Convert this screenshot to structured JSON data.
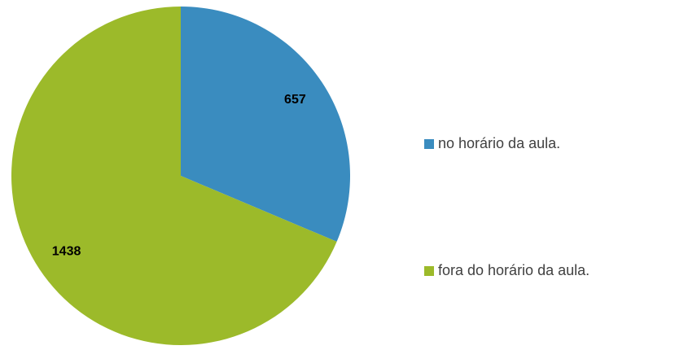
{
  "chart_data": {
    "type": "pie",
    "categories": [
      "no horário da aula.",
      "fora do horário da aula."
    ],
    "values": [
      657,
      1438
    ],
    "colors": [
      "#3a8cbf",
      "#9cba2a"
    ],
    "legend": "right"
  }
}
